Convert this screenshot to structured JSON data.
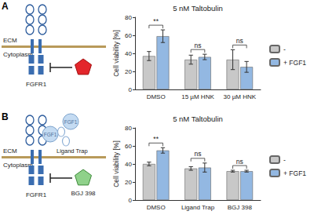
{
  "panels": [
    {
      "label": "A",
      "diagram": {
        "membrane_top": "ECM",
        "membrane_bottom": "Cytoplasm",
        "receptor": "FGFR1"
      }
    },
    {
      "label": "B",
      "diagram": {
        "membrane_top": "ECM",
        "membrane_bottom": "Cytoplasm",
        "receptor": "FGFR1",
        "ligand": [
          "FGF1",
          "FGF1"
        ],
        "ligand_trap": "Ligand Trap",
        "inhibitor": "BGJ 398"
      }
    }
  ],
  "chart_data": [
    {
      "type": "bar",
      "title": "5 nM Taltobulin",
      "y_label": "Cell viability [%]",
      "categories": [
        "DMSO",
        "15 µM HNK",
        "30 µM HNK"
      ],
      "series": [
        {
          "name": "-",
          "color": "#c8c8c8",
          "values": [
            37,
            33,
            33
          ],
          "errors": [
            5,
            5,
            11
          ]
        },
        {
          "name": "+ FGF1",
          "color": "#93b8e2",
          "values": [
            59,
            36,
            25
          ],
          "errors": [
            7,
            3,
            6
          ]
        }
      ],
      "ylim": [
        0,
        80
      ],
      "yticks": [
        0,
        20,
        40,
        60,
        80
      ],
      "grid": false,
      "legend": "right",
      "annotations": [
        {
          "category": "DMSO",
          "text": "**"
        },
        {
          "category": "15 µM HNK",
          "text": "ns"
        },
        {
          "category": "30 µM HNK",
          "text": "ns"
        }
      ]
    },
    {
      "type": "bar",
      "title": "5 nM Taltobulin",
      "y_label": "Cell viability [%]",
      "categories": [
        "DMSO",
        "Ligand Trap",
        "BGJ 398"
      ],
      "series": [
        {
          "name": "-",
          "color": "#c8c8c8",
          "values": [
            40,
            35,
            32
          ],
          "errors": [
            2,
            2,
            1
          ]
        },
        {
          "name": "+ FGF1",
          "color": "#93b8e2",
          "values": [
            55,
            36,
            32
          ],
          "errors": [
            3,
            5,
            1
          ]
        }
      ],
      "ylim": [
        0,
        80
      ],
      "yticks": [
        0,
        20,
        40,
        60,
        80
      ],
      "grid": false,
      "legend": "right",
      "annotations": [
        {
          "category": "DMSO",
          "text": "**"
        },
        {
          "category": "Ligand Trap",
          "text": "ns"
        },
        {
          "category": "BGJ 398",
          "text": "ns"
        }
      ]
    }
  ]
}
